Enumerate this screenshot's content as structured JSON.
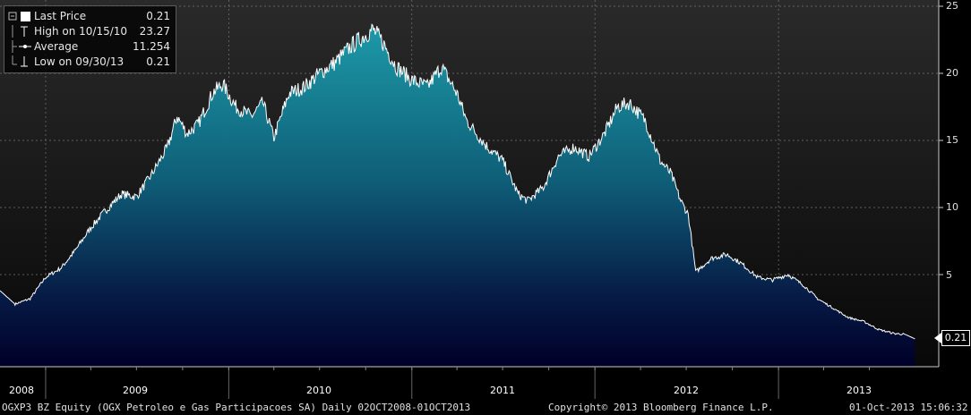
{
  "chart_data": {
    "type": "area",
    "x_range": [
      "2008-10-02",
      "2013-10-01"
    ],
    "ylim": [
      0,
      25
    ],
    "y_ticks": [
      5,
      10,
      15,
      20,
      25
    ],
    "x_tick_labels": [
      "2008",
      "2009",
      "2010",
      "2011",
      "2012",
      "2013"
    ],
    "grid": true,
    "series": [
      {
        "points": [
          [
            "2008-10-02",
            3.8
          ],
          [
            "2008-11-01",
            2.8
          ],
          [
            "2008-12-01",
            3.2
          ],
          [
            "2009-01-01",
            4.8
          ],
          [
            "2009-02-01",
            5.5
          ],
          [
            "2009-03-01",
            6.8
          ],
          [
            "2009-04-01",
            8.5
          ],
          [
            "2009-05-01",
            9.8
          ],
          [
            "2009-06-01",
            11.0
          ],
          [
            "2009-07-01",
            10.8
          ],
          [
            "2009-08-01",
            12.5
          ],
          [
            "2009-09-01",
            14.5
          ],
          [
            "2009-09-20",
            16.8
          ],
          [
            "2009-10-10",
            15.5
          ],
          [
            "2009-11-01",
            16.2
          ],
          [
            "2009-12-01",
            18.6
          ],
          [
            "2009-12-20",
            19.2
          ],
          [
            "2010-01-15",
            17.5
          ],
          [
            "2010-02-15",
            16.8
          ],
          [
            "2010-03-10",
            17.8
          ],
          [
            "2010-04-01",
            15.2
          ],
          [
            "2010-05-01",
            18.5
          ],
          [
            "2010-06-01",
            19.0
          ],
          [
            "2010-07-01",
            20.0
          ],
          [
            "2010-08-01",
            20.8
          ],
          [
            "2010-09-01",
            22.0
          ],
          [
            "2010-10-15",
            23.27
          ],
          [
            "2010-11-01",
            22.5
          ],
          [
            "2010-12-01",
            20.5
          ],
          [
            "2011-01-01",
            19.5
          ],
          [
            "2011-02-01",
            19.0
          ],
          [
            "2011-03-01",
            20.5
          ],
          [
            "2011-04-01",
            18.5
          ],
          [
            "2011-04-20",
            16.5
          ],
          [
            "2011-05-10",
            15.5
          ],
          [
            "2011-06-01",
            14.5
          ],
          [
            "2011-07-01",
            13.5
          ],
          [
            "2011-08-01",
            11.0
          ],
          [
            "2011-08-20",
            10.5
          ],
          [
            "2011-09-20",
            11.5
          ],
          [
            "2011-10-20",
            13.8
          ],
          [
            "2011-11-20",
            14.5
          ],
          [
            "2011-12-20",
            13.8
          ],
          [
            "2012-01-20",
            15.5
          ],
          [
            "2012-02-15",
            17.5
          ],
          [
            "2012-03-10",
            17.8
          ],
          [
            "2012-04-10",
            16.5
          ],
          [
            "2012-05-10",
            13.5
          ],
          [
            "2012-06-01",
            12.5
          ],
          [
            "2012-06-20",
            10.5
          ],
          [
            "2012-07-05",
            9.5
          ],
          [
            "2012-07-20",
            5.2
          ],
          [
            "2012-08-20",
            6.2
          ],
          [
            "2012-09-20",
            6.5
          ],
          [
            "2012-10-20",
            5.8
          ],
          [
            "2012-11-20",
            4.8
          ],
          [
            "2012-12-20",
            4.6
          ],
          [
            "2013-01-20",
            5.0
          ],
          [
            "2013-02-20",
            4.2
          ],
          [
            "2013-03-20",
            3.2
          ],
          [
            "2013-04-20",
            2.5
          ],
          [
            "2013-05-20",
            1.8
          ],
          [
            "2013-06-20",
            1.5
          ],
          [
            "2013-07-20",
            0.9
          ],
          [
            "2013-08-20",
            0.6
          ],
          [
            "2013-09-10",
            0.55
          ],
          [
            "2013-09-30",
            0.21
          ]
        ]
      }
    ],
    "legend": [
      {
        "label": "Last Price",
        "value": "0.21",
        "icon": "white-square-icon"
      },
      {
        "label": "High on 10/15/10",
        "value": "23.27",
        "icon": "high-marker-icon"
      },
      {
        "label": "Average",
        "value": "11.254",
        "icon": "average-line-icon"
      },
      {
        "label": "Low on 09/30/13",
        "value": "0.21",
        "icon": "low-marker-icon"
      }
    ],
    "legend_placement": "top-left",
    "last_price_label": "0.21",
    "colors": {
      "fill_top": "#1a8a9a",
      "fill_bottom": "#000033",
      "line": "#ffffff",
      "background_top": "#2a2a2a",
      "background_bottom": "#080808"
    }
  },
  "footer": {
    "security": "OGXP3 BZ Equity (OGX Petroleo e Gas Participacoes SA)  Daily 02OCT2008-01OCT2013",
    "copyright": "Copyright© 2013 Bloomberg Finance L.P.",
    "timestamp": "01-Oct-2013 15:06:32"
  }
}
